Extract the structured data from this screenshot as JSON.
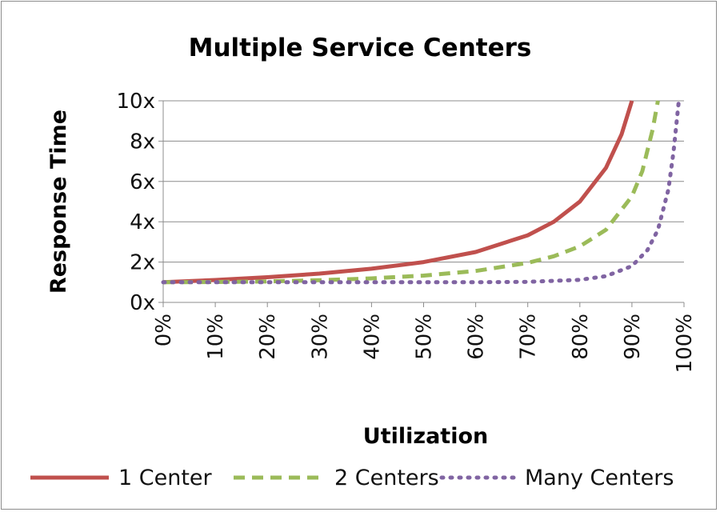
{
  "chart_data": {
    "type": "line",
    "title": "Multiple Service Centers",
    "xlabel": "Utilization",
    "ylabel": "Response Time",
    "xlim": [
      0,
      100
    ],
    "ylim": [
      0,
      10
    ],
    "x_ticks": [
      "0%",
      "10%",
      "20%",
      "30%",
      "40%",
      "50%",
      "60%",
      "70%",
      "80%",
      "90%",
      "100%"
    ],
    "y_ticks": [
      "0x",
      "2x",
      "4x",
      "6x",
      "8x",
      "10x"
    ],
    "grid": "horizontal",
    "legend_position": "bottom",
    "series": [
      {
        "name": "1 Center",
        "color": "#c0504d",
        "style": "solid",
        "x": [
          0,
          10,
          20,
          30,
          40,
          50,
          60,
          70,
          75,
          80,
          85,
          88,
          90
        ],
        "y": [
          1.0,
          1.11,
          1.25,
          1.43,
          1.67,
          2.0,
          2.5,
          3.33,
          4.0,
          5.0,
          6.67,
          8.33,
          10.0
        ]
      },
      {
        "name": "2 Centers",
        "color": "#9bbb59",
        "style": "dashed",
        "x": [
          0,
          10,
          20,
          30,
          40,
          50,
          60,
          70,
          75,
          80,
          85,
          90,
          92,
          94,
          95
        ],
        "y": [
          1.0,
          1.01,
          1.04,
          1.1,
          1.19,
          1.33,
          1.56,
          1.96,
          2.29,
          2.78,
          3.6,
          5.26,
          6.51,
          8.59,
          10.0
        ]
      },
      {
        "name": "Many Centers",
        "color": "#8064a2",
        "style": "dotted",
        "x": [
          0,
          10,
          20,
          30,
          40,
          50,
          60,
          70,
          80,
          85,
          90,
          93,
          95,
          97,
          98,
          99
        ],
        "y": [
          1.0,
          1.0,
          1.0,
          1.0,
          1.0,
          1.0,
          1.0,
          1.02,
          1.12,
          1.3,
          1.8,
          2.6,
          3.6,
          5.6,
          7.5,
          10.0
        ]
      }
    ]
  }
}
